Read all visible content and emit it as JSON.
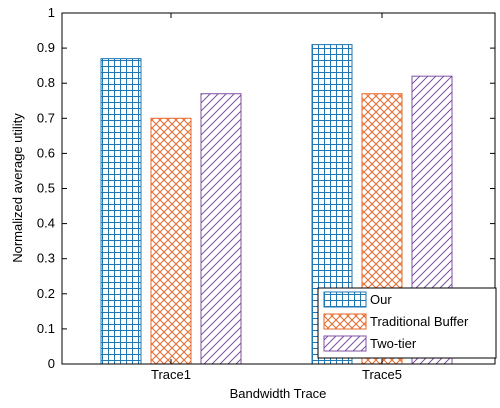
{
  "chart_data": {
    "type": "bar",
    "categories": [
      "Trace1",
      "Trace5"
    ],
    "series": [
      {
        "name": "Our",
        "values": [
          0.87,
          0.91
        ],
        "color": "#1f77b4",
        "pattern": "grid"
      },
      {
        "name": "Traditional Buffer",
        "values": [
          0.7,
          0.77
        ],
        "color": "#e8692a",
        "pattern": "crosshatch"
      },
      {
        "name": "Two-tier",
        "values": [
          0.77,
          0.82
        ],
        "color": "#7e52a3",
        "pattern": "diagonal"
      }
    ],
    "xlabel": "Bandwidth Trace",
    "ylabel": "Normalized average utility",
    "ylim": [
      0,
      1
    ],
    "yticks": [
      "0",
      "0.1",
      "0.2",
      "0.3",
      "0.4",
      "0.5",
      "0.6",
      "0.7",
      "0.8",
      "0.9",
      "1"
    ],
    "grid": false,
    "legend_position": "bottom-right"
  }
}
